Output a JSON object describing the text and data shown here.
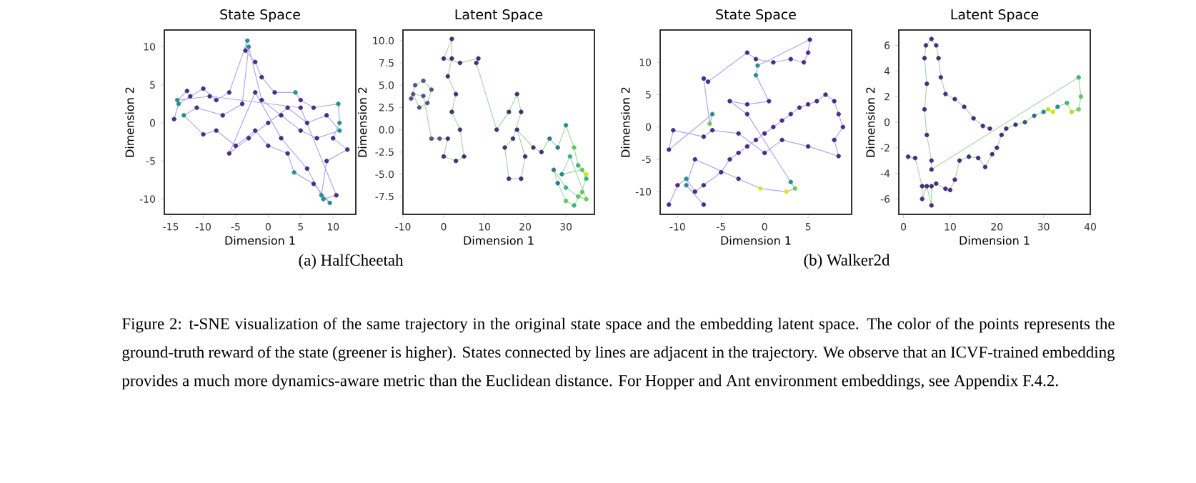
{
  "chart_data": [
    {
      "type": "line",
      "title": "State Space",
      "xlabel": "Dimension 1",
      "ylabel": "Dimension 2",
      "xlim": [
        -16,
        13.5
      ],
      "ylim": [
        -12,
        12.2
      ],
      "xticks": [
        -15,
        -10,
        -5,
        0,
        5,
        10
      ],
      "yticks": [
        -10,
        -5,
        0,
        5,
        10
      ],
      "marker": "circle",
      "line_style": "solid",
      "series": [
        {
          "color": "#aaaaf2",
          "x": [
            -14.5,
            -13.8,
            -12,
            -10,
            -8,
            -6,
            -3.2,
            -3.5,
            -2,
            -1,
            1,
            4.2,
            5,
            7,
            10.8,
            11,
            10,
            12.2,
            9,
            8.2,
            9.5,
            7,
            4,
            3,
            0,
            -2,
            -5,
            -8,
            -10,
            -13,
            -11,
            -7,
            -4,
            -3,
            -1,
            2,
            5,
            7.5,
            11,
            9,
            6,
            3,
            0,
            -3,
            -6,
            -2,
            2,
            6,
            8.5,
            10.5,
            5,
            -9,
            -14,
            -12.5
          ],
          "values": [
            0.5,
            2.5,
            3.5,
            4.5,
            3,
            4,
            10.8,
            9.5,
            8,
            6,
            4,
            4,
            3,
            2,
            2.5,
            0,
            -2,
            -3.5,
            -5,
            -9.5,
            -10.5,
            -8,
            -6.5,
            -4,
            -3,
            -1,
            -3,
            -1,
            -1.5,
            1,
            2,
            1,
            2.5,
            10,
            3,
            1,
            -1,
            -2,
            -1,
            1,
            0,
            2,
            0,
            -2,
            -4,
            4,
            -2,
            -6,
            -10,
            -9.5,
            2,
            3.5,
            3,
            4.2
          ],
          "colors": [
            "#482d86",
            "#2a8f8c",
            "#482d86",
            "#482d86",
            "#482d86",
            "#482d86",
            "#2a8f8c",
            "#482d86",
            "#482d86",
            "#482d86",
            "#482d86",
            "#2a8f8c",
            "#482d86",
            "#482d86",
            "#2a8f8c",
            "#2a8f8c",
            "#482d86",
            "#482d86",
            "#482d86",
            "#2a8f8c",
            "#2a8f8c",
            "#482d86",
            "#2a8f8c",
            "#482d86",
            "#482d86",
            "#482d86",
            "#482d86",
            "#482d86",
            "#482d86",
            "#2a8f8c",
            "#482d86",
            "#482d86",
            "#482d86",
            "#2a8f8c",
            "#482d86",
            "#482d86",
            "#482d86",
            "#482d86",
            "#2a8f8c",
            "#482d86",
            "#482d86",
            "#482d86",
            "#482d86",
            "#482d86",
            "#482d86",
            "#482d86",
            "#482d86",
            "#482d86",
            "#2a8f8c",
            "#482d86",
            "#482d86",
            "#482d86",
            "#2a8f8c",
            "#482d86"
          ]
        }
      ],
      "annotations": [
        "(a) HalfCheetah"
      ]
    },
    {
      "type": "line",
      "title": "Latent Space",
      "xlabel": "Dimension 1",
      "ylabel": "Dimension 2",
      "xlim": [
        -10,
        37
      ],
      "ylim": [
        -9.5,
        11.2
      ],
      "xticks": [
        -10,
        0,
        10,
        20,
        30
      ],
      "yticks": [
        {
          "value": -7.5,
          "label": "-7.5"
        },
        {
          "value": -5,
          "label": "-5.0"
        },
        {
          "value": -2.5,
          "label": "-2.5"
        },
        {
          "value": 0,
          "label": "0.0"
        },
        {
          "value": 2.5,
          "label": "2.5"
        },
        {
          "value": 5,
          "label": "5.0"
        },
        {
          "value": 7.5,
          "label": "7.5"
        },
        {
          "value": 10,
          "label": "10.0"
        }
      ],
      "marker": "circle",
      "line_style": "solid",
      "series": [
        {
          "color": "#a8d8a8",
          "x": [
            -8,
            -7,
            -5,
            -3,
            -4,
            -6,
            -7.5,
            -5,
            -3,
            -1,
            1,
            0,
            3,
            5,
            4,
            2,
            3,
            1,
            2,
            2,
            0,
            4,
            8.5,
            8,
            13,
            16,
            18,
            19,
            17,
            15,
            16,
            19,
            20,
            18,
            22,
            24,
            26,
            28,
            30,
            32,
            33,
            35,
            34,
            32,
            30,
            28,
            27,
            30,
            33,
            35,
            31,
            29,
            34,
            35
          ],
          "values": [
            3.5,
            5,
            5.5,
            4.5,
            3,
            2.5,
            4,
            3.8,
            -1,
            -1,
            -1,
            -3,
            -3.5,
            -3,
            0,
            2,
            4,
            6,
            8,
            10.2,
            8,
            7.5,
            8,
            7.5,
            0,
            2,
            4,
            2,
            -1,
            -2,
            -5.5,
            -5.5,
            -3,
            0,
            -2,
            -2.5,
            -1,
            -2,
            0.5,
            -2,
            -4,
            -5,
            -7,
            -8.5,
            -8,
            -6,
            -4.5,
            -6.5,
            -7.5,
            -7.8,
            -3,
            -5,
            -4.5,
            -5.5
          ],
          "colors": [
            "#5b5080",
            "#5b5080",
            "#5b5080",
            "#5b5080",
            "#5b5080",
            "#5b5080",
            "#5b5080",
            "#5b5080",
            "#5b5080",
            "#5b5080",
            "#46306e",
            "#46306e",
            "#46306e",
            "#46306e",
            "#46306e",
            "#46306e",
            "#46306e",
            "#46306e",
            "#46306e",
            "#46306e",
            "#46306e",
            "#46306e",
            "#46306e",
            "#46306e",
            "#46306e",
            "#46306e",
            "#46306e",
            "#46306e",
            "#46306e",
            "#46306e",
            "#46306e",
            "#46306e",
            "#46306e",
            "#46306e",
            "#46306e",
            "#46306e",
            "#2a788e",
            "#2a788e",
            "#21918c",
            "#5ec962",
            "#35b779",
            "#d2e21b",
            "#5ec962",
            "#35b779",
            "#5ec962",
            "#2a788e",
            "#2a788e",
            "#35b779",
            "#5ec962",
            "#6ece58",
            "#35b779",
            "#21918c",
            "#5ec962",
            "#35b779"
          ]
        }
      ]
    },
    {
      "type": "line",
      "title": "State Space",
      "xlabel": "Dimension 1",
      "ylabel": "Dimension 2",
      "xlim": [
        -12,
        10
      ],
      "ylim": [
        -13.5,
        15
      ],
      "xticks": [
        -10,
        -5,
        0,
        5
      ],
      "yticks": [
        -10,
        -5,
        0,
        5,
        10
      ],
      "marker": "circle",
      "line_style": "solid",
      "series": [
        {
          "color": "#aaaaf2",
          "x": [
            -11,
            -10,
            -9,
            -8,
            -7,
            -5,
            -4,
            -3,
            -2,
            -1,
            0,
            1,
            2,
            3,
            4,
            5,
            6,
            7,
            8,
            8.5,
            9,
            8,
            8.5,
            5,
            2,
            0,
            -3,
            -6,
            -7,
            -10.5,
            -11,
            -6,
            -6.3,
            -7,
            -6.5,
            -2,
            -1,
            1,
            3,
            4.5,
            5,
            5.2,
            -0.8,
            -1,
            0.5,
            -2,
            -4,
            -2,
            3,
            3.5,
            2.5,
            -0.5,
            -3,
            -8,
            -9,
            -7
          ],
          "values": [
            -12,
            -9,
            -8,
            -10,
            -9,
            -7,
            -5,
            -4,
            -3,
            -2,
            -1,
            0,
            1,
            2,
            3,
            3.5,
            4,
            5,
            4,
            2,
            0,
            -2,
            -4.5,
            -3,
            -2,
            -4,
            -1,
            -0.5,
            -1.5,
            -0.5,
            -3.5,
            2,
            0.5,
            7.5,
            7,
            11.5,
            10.5,
            10,
            10.5,
            10,
            11.5,
            13.5,
            9.5,
            8,
            4,
            3.5,
            4,
            2,
            -8.5,
            -9.5,
            -10,
            -9.5,
            -8,
            -5,
            -9,
            -12
          ],
          "colors": [
            "#482c8a",
            "#482c8a",
            "#2a8f8c",
            "#482c8a",
            "#482c8a",
            "#482c8a",
            "#482c8a",
            "#482c8a",
            "#482c8a",
            "#482c8a",
            "#482c8a",
            "#482c8a",
            "#482c8a",
            "#482c8a",
            "#482c8a",
            "#482c8a",
            "#482c8a",
            "#482c8a",
            "#482c8a",
            "#482c8a",
            "#482c8a",
            "#482c8a",
            "#482c8a",
            "#482c8a",
            "#482c8a",
            "#482c8a",
            "#482c8a",
            "#482c8a",
            "#482c8a",
            "#482c8a",
            "#482c8a",
            "#2a8f8c",
            "#6cc85a",
            "#482c8a",
            "#482c8a",
            "#482c8a",
            "#482c8a",
            "#482c8a",
            "#482c8a",
            "#482c8a",
            "#482c8a",
            "#482c8a",
            "#2a8f8c",
            "#2a8f8c",
            "#482c8a",
            "#482c8a",
            "#482c8a",
            "#482c8a",
            "#2a8f8c",
            "#6cc85a",
            "#e3e418",
            "#e3e418",
            "#482c8a",
            "#482c8a",
            "#2a8f8c",
            "#482c8a"
          ]
        }
      ],
      "annotations": [
        "(b) Walker2d"
      ]
    },
    {
      "type": "line",
      "title": "Latent Space",
      "xlabel": "Dimension 1",
      "ylabel": "Dimension 2",
      "xlim": [
        -1,
        40
      ],
      "ylim": [
        -7.2,
        7.2
      ],
      "xticks": [
        0,
        10,
        20,
        30,
        40
      ],
      "yticks": [
        -6,
        -4,
        -2,
        0,
        2,
        4,
        6
      ],
      "marker": "circle",
      "line_style": "solid",
      "series": [
        {
          "color": "#a8d8a8",
          "x": [
            18.5,
            17,
            15,
            13,
            11,
            9,
            8,
            7.5,
            7,
            6,
            4.8,
            4.5,
            5,
            4.5,
            5,
            6,
            6,
            37.5,
            38,
            37.5,
            36,
            35,
            33,
            32,
            31,
            30,
            28,
            26,
            24,
            22,
            21,
            20,
            19,
            17.5,
            16,
            14,
            12,
            11,
            10,
            9,
            7,
            6,
            6,
            5,
            4,
            4,
            2.5,
            1
          ],
          "values": [
            -0.5,
            -0.3,
            0.3,
            1.2,
            1.8,
            2.2,
            3.5,
            5,
            6,
            6.5,
            6,
            5,
            3,
            1,
            -1,
            -3,
            -3.7,
            3.5,
            2,
            1,
            0.8,
            1.5,
            1.2,
            0.8,
            1,
            0.8,
            0.5,
            0,
            -0.2,
            -0.5,
            -1,
            -2,
            -2.5,
            -3.5,
            -2.8,
            -2.7,
            -3,
            -4.5,
            -5.3,
            -5.2,
            -4.8,
            -5,
            -6.5,
            -5,
            -6,
            -5,
            -2.8,
            -2.7
          ],
          "colors": [
            "#472d7b",
            "#472d7b",
            "#472d7b",
            "#472d7b",
            "#472d7b",
            "#472d7b",
            "#472d7b",
            "#472d7b",
            "#472d7b",
            "#472d7b",
            "#472d7b",
            "#472d7b",
            "#472d7b",
            "#472d7b",
            "#472d7b",
            "#472d7b",
            "#472d7b",
            "#35b779",
            "#5ec962",
            "#6ece58",
            "#b5de2b",
            "#35b779",
            "#21918c",
            "#d8e219",
            "#c2df23",
            "#21918c",
            "#31688e",
            "#3b528b",
            "#472d7b",
            "#472d7b",
            "#472d7b",
            "#472d7b",
            "#472d7b",
            "#472d7b",
            "#472d7b",
            "#472d7b",
            "#472d7b",
            "#472d7b",
            "#472d7b",
            "#472d7b",
            "#472d7b",
            "#472d7b",
            "#472d7b",
            "#472d7b",
            "#472d7b",
            "#472d7b",
            "#472d7b",
            "#472d7b"
          ]
        }
      ],
      "annotations": [
        "Figure 2: t-SNE visualization of the same trajectory in the original state space and the embedding latent space. The color of the points represents the ground-truth reward of the state (greener is higher). States connected by lines are adjacent in the trajectory. We observe that an ICVF-trained embedding provides a much more dynamics-aware metric than the Euclidean distance. For Hopper and Ant environment embeddings, see Appendix F.4.2."
      ]
    }
  ]
}
